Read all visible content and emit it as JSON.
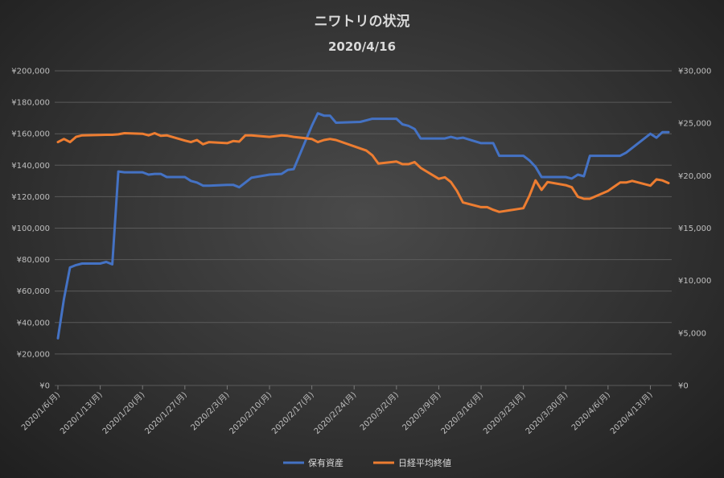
{
  "chart_data": {
    "type": "line",
    "title": "ニワトリの状況",
    "subtitle": "2020/4/16",
    "y_left": {
      "min": 0,
      "max": 200000,
      "step": 20000,
      "tick_labels": [
        "¥0",
        "¥20,000",
        "¥40,000",
        "¥60,000",
        "¥80,000",
        "¥100,000",
        "¥120,000",
        "¥140,000",
        "¥160,000",
        "¥180,000",
        "¥200,000"
      ]
    },
    "y_right": {
      "min": 0,
      "max": 30000,
      "step": 5000,
      "tick_labels": [
        "¥0",
        "¥5,000",
        "¥10,000",
        "¥15,000",
        "¥20,000",
        "¥25,000",
        "¥30,000"
      ]
    },
    "x_tick_labels": [
      "2020/1/6(月)",
      "2020/1/13(月)",
      "2020/1/20(月)",
      "2020/1/27(月)",
      "2020/2/3(月)",
      "2020/2/10(月)",
      "2020/2/17(月)",
      "2020/2/24(月)",
      "2020/3/2(月)",
      "2020/3/9(月)",
      "2020/3/16(月)",
      "2020/3/23(月)",
      "2020/3/30(月)",
      "2020/4/6(月)",
      "2020/4/13(月)"
    ],
    "x_start": "2020/1/6",
    "x_end": "2020/4/16",
    "grid": true,
    "legend_position": "bottom",
    "series": [
      {
        "name": "保有資産",
        "axis": "left",
        "color": "#4472c4",
        "points": [
          [
            "2020/1/6",
            30000
          ],
          [
            "2020/1/7",
            55000
          ],
          [
            "2020/1/8",
            75000
          ],
          [
            "2020/1/9",
            76500
          ],
          [
            "2020/1/10",
            77500
          ],
          [
            "2020/1/13",
            77500
          ],
          [
            "2020/1/14",
            78500
          ],
          [
            "2020/1/15",
            77000
          ],
          [
            "2020/1/16",
            136000
          ],
          [
            "2020/1/17",
            135500
          ],
          [
            "2020/1/20",
            135500
          ],
          [
            "2020/1/21",
            134000
          ],
          [
            "2020/1/22",
            134500
          ],
          [
            "2020/1/23",
            134500
          ],
          [
            "2020/1/24",
            132500
          ],
          [
            "2020/1/27",
            132500
          ],
          [
            "2020/1/28",
            130000
          ],
          [
            "2020/1/29",
            129000
          ],
          [
            "2020/1/30",
            127000
          ],
          [
            "2020/1/31",
            127000
          ],
          [
            "2020/2/3",
            127500
          ],
          [
            "2020/2/4",
            127500
          ],
          [
            "2020/2/5",
            126000
          ],
          [
            "2020/2/6",
            129000
          ],
          [
            "2020/2/7",
            132000
          ],
          [
            "2020/2/10",
            134000
          ],
          [
            "2020/2/12",
            134500
          ],
          [
            "2020/2/13",
            137000
          ],
          [
            "2020/2/14",
            137500
          ],
          [
            "2020/2/17",
            165000
          ],
          [
            "2020/2/18",
            173000
          ],
          [
            "2020/2/19",
            171500
          ],
          [
            "2020/2/20",
            171500
          ],
          [
            "2020/2/21",
            167000
          ],
          [
            "2020/2/25",
            167500
          ],
          [
            "2020/2/26",
            168500
          ],
          [
            "2020/2/27",
            169500
          ],
          [
            "2020/2/28",
            169500
          ],
          [
            "2020/3/2",
            169500
          ],
          [
            "2020/3/3",
            166000
          ],
          [
            "2020/3/4",
            165000
          ],
          [
            "2020/3/5",
            163000
          ],
          [
            "2020/3/6",
            157000
          ],
          [
            "2020/3/9",
            157000
          ],
          [
            "2020/3/10",
            157000
          ],
          [
            "2020/3/11",
            158000
          ],
          [
            "2020/3/12",
            157000
          ],
          [
            "2020/3/13",
            157500
          ],
          [
            "2020/3/16",
            154000
          ],
          [
            "2020/3/17",
            154000
          ],
          [
            "2020/3/18",
            154000
          ],
          [
            "2020/3/19",
            146000
          ],
          [
            "2020/3/23",
            146000
          ],
          [
            "2020/3/24",
            143000
          ],
          [
            "2020/3/25",
            139000
          ],
          [
            "2020/3/26",
            132500
          ],
          [
            "2020/3/27",
            132500
          ],
          [
            "2020/3/30",
            132500
          ],
          [
            "2020/3/31",
            131500
          ],
          [
            "2020/4/1",
            134000
          ],
          [
            "2020/4/2",
            133000
          ],
          [
            "2020/4/3",
            146000
          ],
          [
            "2020/4/6",
            146000
          ],
          [
            "2020/4/7",
            146000
          ],
          [
            "2020/4/8",
            146000
          ],
          [
            "2020/4/9",
            148000
          ],
          [
            "2020/4/10",
            151000
          ],
          [
            "2020/4/13",
            160000
          ],
          [
            "2020/4/14",
            157500
          ],
          [
            "2020/4/15",
            161000
          ],
          [
            "2020/4/16",
            161000
          ]
        ]
      },
      {
        "name": "日経平均終値",
        "axis": "right",
        "color": "#ed7d31",
        "points": [
          [
            "2020/1/6",
            23200
          ],
          [
            "2020/1/7",
            23500
          ],
          [
            "2020/1/8",
            23200
          ],
          [
            "2020/1/9",
            23700
          ],
          [
            "2020/1/10",
            23850
          ],
          [
            "2020/1/14",
            23900
          ],
          [
            "2020/1/15",
            23900
          ],
          [
            "2020/1/16",
            23950
          ],
          [
            "2020/1/17",
            24050
          ],
          [
            "2020/1/20",
            24000
          ],
          [
            "2020/1/21",
            23850
          ],
          [
            "2020/1/22",
            24050
          ],
          [
            "2020/1/23",
            23800
          ],
          [
            "2020/1/24",
            23850
          ],
          [
            "2020/1/27",
            23350
          ],
          [
            "2020/1/28",
            23200
          ],
          [
            "2020/1/29",
            23400
          ],
          [
            "2020/1/30",
            23000
          ],
          [
            "2020/1/31",
            23200
          ],
          [
            "2020/2/3",
            23100
          ],
          [
            "2020/2/4",
            23300
          ],
          [
            "2020/2/5",
            23250
          ],
          [
            "2020/2/6",
            23850
          ],
          [
            "2020/2/7",
            23850
          ],
          [
            "2020/2/10",
            23700
          ],
          [
            "2020/2/12",
            23850
          ],
          [
            "2020/2/13",
            23800
          ],
          [
            "2020/2/14",
            23700
          ],
          [
            "2020/2/17",
            23500
          ],
          [
            "2020/2/18",
            23200
          ],
          [
            "2020/2/19",
            23400
          ],
          [
            "2020/2/20",
            23500
          ],
          [
            "2020/2/21",
            23400
          ],
          [
            "2020/2/25",
            22600
          ],
          [
            "2020/2/26",
            22400
          ],
          [
            "2020/2/27",
            21950
          ],
          [
            "2020/2/28",
            21150
          ],
          [
            "2020/3/2",
            21350
          ],
          [
            "2020/3/3",
            21100
          ],
          [
            "2020/3/4",
            21100
          ],
          [
            "2020/3/5",
            21300
          ],
          [
            "2020/3/6",
            20750
          ],
          [
            "2020/3/9",
            19700
          ],
          [
            "2020/3/10",
            19850
          ],
          [
            "2020/3/11",
            19400
          ],
          [
            "2020/3/12",
            18550
          ],
          [
            "2020/3/13",
            17450
          ],
          [
            "2020/3/16",
            17000
          ],
          [
            "2020/3/17",
            17000
          ],
          [
            "2020/3/18",
            16750
          ],
          [
            "2020/3/19",
            16550
          ],
          [
            "2020/3/23",
            16900
          ],
          [
            "2020/3/24",
            18100
          ],
          [
            "2020/3/25",
            19550
          ],
          [
            "2020/3/26",
            18650
          ],
          [
            "2020/3/27",
            19400
          ],
          [
            "2020/3/30",
            19100
          ],
          [
            "2020/3/31",
            18900
          ],
          [
            "2020/4/1",
            18000
          ],
          [
            "2020/4/2",
            17800
          ],
          [
            "2020/4/3",
            17800
          ],
          [
            "2020/4/6",
            18550
          ],
          [
            "2020/4/7",
            18950
          ],
          [
            "2020/4/8",
            19350
          ],
          [
            "2020/4/9",
            19350
          ],
          [
            "2020/4/10",
            19500
          ],
          [
            "2020/4/13",
            19050
          ],
          [
            "2020/4/14",
            19650
          ],
          [
            "2020/4/15",
            19550
          ],
          [
            "2020/4/16",
            19300
          ]
        ]
      }
    ]
  }
}
